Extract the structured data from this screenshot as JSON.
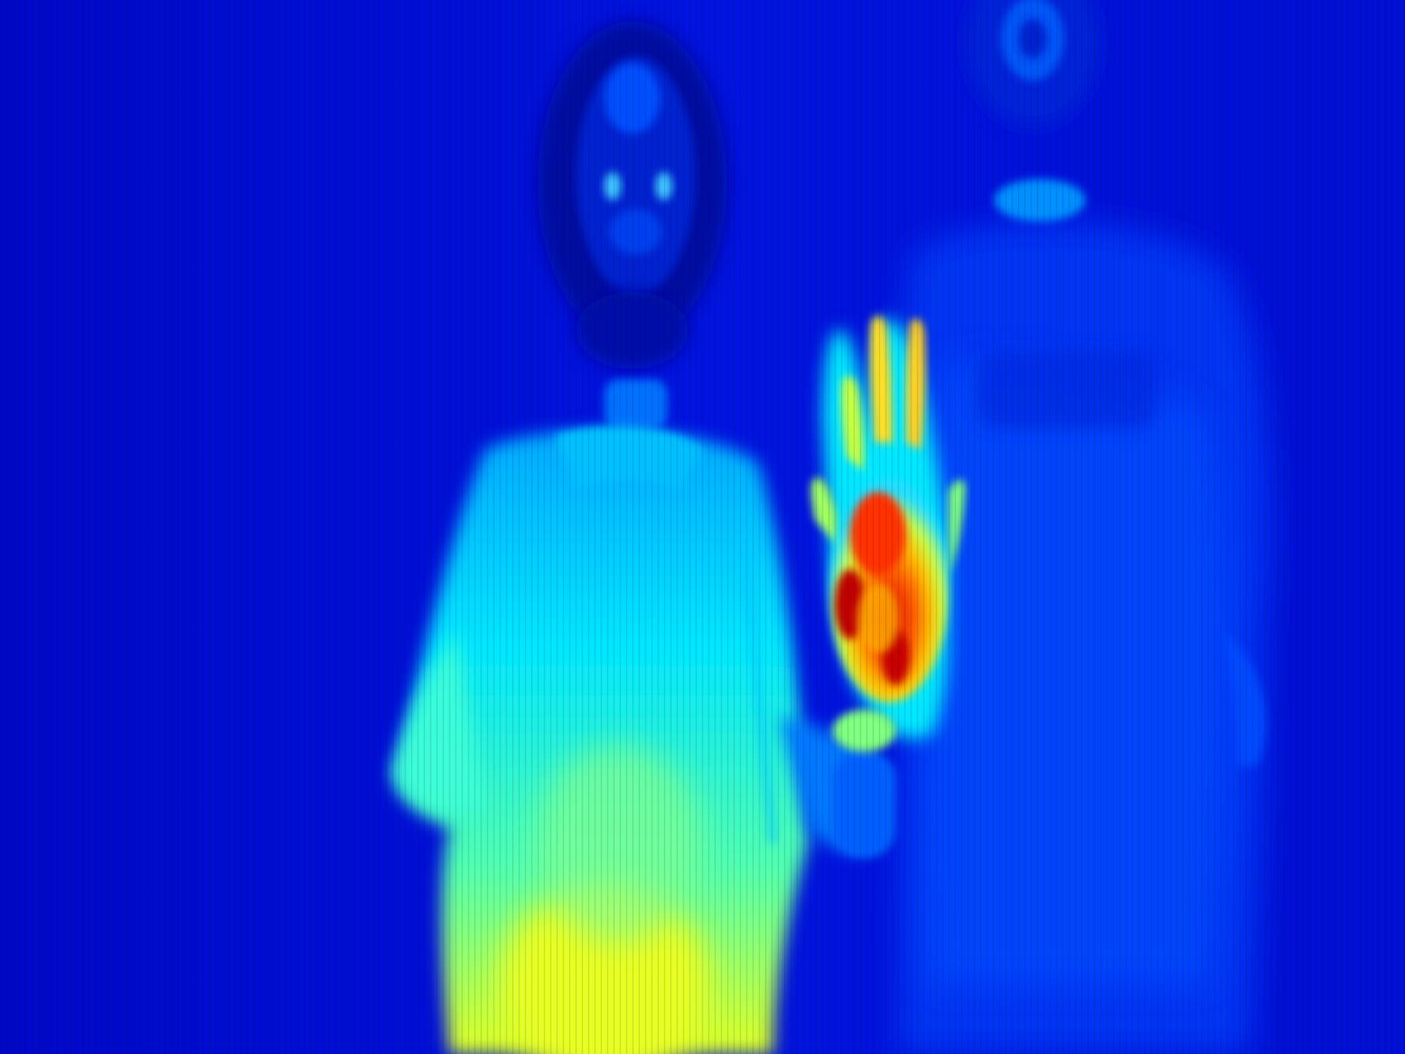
{
  "image": {
    "kind": "thermal-photo",
    "colormap": "jet",
    "palette": {
      "background": "#0010d8",
      "cold": "#0000a0",
      "cool": "#0050ff",
      "cyan": "#00e0ff",
      "green": "#40ffb0",
      "yellow": "#e8ff20",
      "orange": "#ff7000",
      "red": "#e00000"
    },
    "subjects": [
      {
        "name": "person-left",
        "body_temperature_level": "cyan-yellow"
      },
      {
        "name": "person-right",
        "body_temperature_level": "blue"
      },
      {
        "name": "raised-hand",
        "body_temperature_level": "red-orange"
      }
    ]
  }
}
